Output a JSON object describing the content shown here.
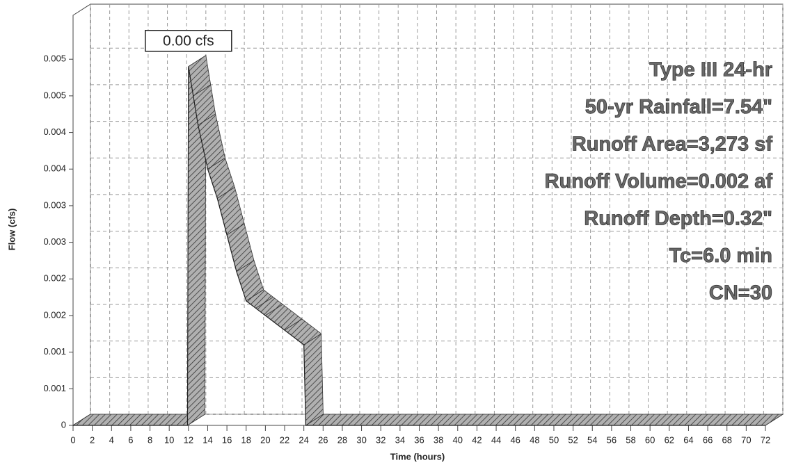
{
  "chart_data": {
    "type": "line",
    "ylabel": "Flow (cfs)",
    "xlabel": "Time (hours)",
    "x": [
      0,
      11.9,
      12,
      12.5,
      13,
      14,
      15,
      16,
      17,
      18,
      19,
      20,
      22,
      24,
      24.2,
      72
    ],
    "series": [
      {
        "color": "#9a9a9a",
        "values": [
          0,
          0,
          0.0049,
          0.0045,
          0.0041,
          0.0035,
          0.0031,
          0.0026,
          0.0021,
          0.0017,
          0.0016,
          0.0015,
          0.0013,
          0.0011,
          0,
          0
        ]
      }
    ],
    "peak_label": "0.00 cfs",
    "annotations": [
      "Type III 24-hr",
      "50-yr Rainfall=7.54\"",
      "Runoff Area=3,273 sf",
      "Runoff Volume=0.002 af",
      "Runoff Depth=0.32\"",
      "Tc=6.0 min",
      "CN=30"
    ],
    "xlim": [
      0,
      72
    ],
    "ylim": [
      0,
      0.0056
    ],
    "xticks": [
      0,
      2,
      4,
      6,
      8,
      10,
      12,
      14,
      16,
      18,
      20,
      22,
      24,
      26,
      28,
      30,
      32,
      34,
      36,
      38,
      40,
      42,
      44,
      46,
      48,
      50,
      52,
      54,
      56,
      58,
      60,
      62,
      64,
      66,
      68,
      70,
      72
    ],
    "yticks": [
      0,
      {
        "value": 0.0005,
        "label": "0.001"
      },
      0.001,
      {
        "value": 0.0015,
        "label": "0.002"
      },
      0.002,
      {
        "value": 0.0025,
        "label": "0.003"
      },
      0.003,
      {
        "value": 0.0035,
        "label": "0.004"
      },
      0.004,
      {
        "value": 0.0045,
        "label": "0.005"
      },
      0.005
    ],
    "grid": true
  }
}
